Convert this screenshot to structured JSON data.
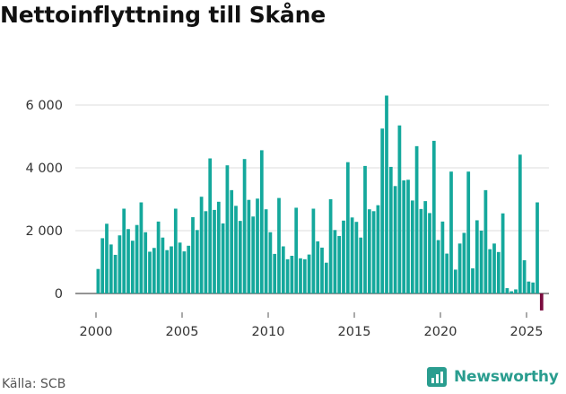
{
  "title": "Nettoinflyttning till Skåne",
  "source": "Källa: SCB",
  "brand": "Newsworthy",
  "colors": {
    "bar": "#14a89c",
    "negative": "#7b0d3f",
    "brand": "#2a9d8f",
    "grid": "#dddddd"
  },
  "chart_data": {
    "type": "bar",
    "title": "Nettoinflyttning till Skåne",
    "xlabel": "",
    "ylabel": "",
    "frequency": "quarterly",
    "xlim": [
      1999,
      2027
    ],
    "ylim": [
      -600,
      6900
    ],
    "x_ticks": [
      2000,
      2005,
      2010,
      2015,
      2020,
      2025
    ],
    "x_tick_labels": [
      "2000",
      "2005",
      "2010",
      "2015",
      "2020",
      "2025"
    ],
    "y_ticks": [
      0,
      2000,
      4000,
      6000
    ],
    "y_tick_labels": [
      "0",
      "2 000",
      "4 000",
      "6 000"
    ],
    "start_year": 2000,
    "values": [
      780,
      1760,
      2220,
      1560,
      1230,
      1850,
      2700,
      2050,
      1680,
      2180,
      2900,
      1950,
      1330,
      1450,
      2290,
      1780,
      1380,
      1500,
      2700,
      1620,
      1340,
      1520,
      2430,
      2020,
      3080,
      2620,
      4300,
      2660,
      2920,
      2230,
      4080,
      3290,
      2790,
      2310,
      4280,
      2980,
      2450,
      3020,
      4560,
      2680,
      1950,
      1260,
      3040,
      1500,
      1090,
      1200,
      2730,
      1120,
      1090,
      1240,
      2700,
      1660,
      1460,
      980,
      3000,
      2020,
      1830,
      2320,
      4180,
      2420,
      2280,
      1780,
      4060,
      2680,
      2620,
      2810,
      5250,
      6300,
      4030,
      3420,
      5350,
      3600,
      3620,
      2960,
      4690,
      2690,
      2940,
      2560,
      4860,
      1700,
      2290,
      1270,
      3880,
      760,
      1590,
      1930,
      3880,
      800,
      2330,
      2000,
      3290,
      1410,
      1590,
      1320,
      2550,
      170,
      70,
      130,
      4420,
      1060,
      380,
      350,
      2900,
      -540
    ]
  }
}
